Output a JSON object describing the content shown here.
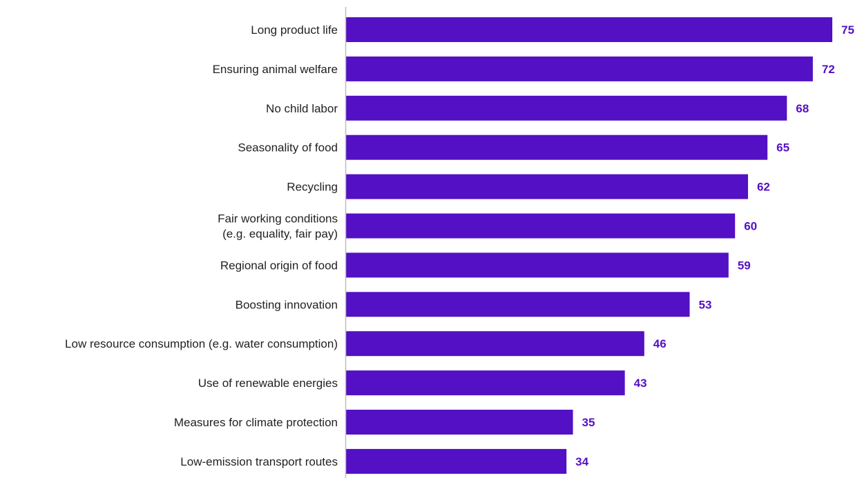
{
  "chart_data": {
    "type": "bar",
    "orientation": "horizontal",
    "title": "",
    "xlabel": "",
    "ylabel": "",
    "xlim": [
      0,
      75
    ],
    "grid": false,
    "legend": "none",
    "bar_color": "#5310C4",
    "value_label_color": "#5310C4",
    "axis_color": "#BDBDBD",
    "categories": [
      [
        "Long product life"
      ],
      [
        "Ensuring animal welfare"
      ],
      [
        "No child labor"
      ],
      [
        "Seasonality of food"
      ],
      [
        "Recycling"
      ],
      [
        "Fair working conditions",
        "(e.g. equality, fair pay)"
      ],
      [
        "Regional origin of food"
      ],
      [
        "Boosting innovation"
      ],
      [
        "Low resource consumption (e.g. water consumption)"
      ],
      [
        "Use of renewable energies"
      ],
      [
        "Measures for climate protection"
      ],
      [
        "Low-emission transport routes"
      ]
    ],
    "values": [
      75,
      72,
      68,
      65,
      62,
      60,
      59,
      53,
      46,
      43,
      35,
      34
    ]
  }
}
